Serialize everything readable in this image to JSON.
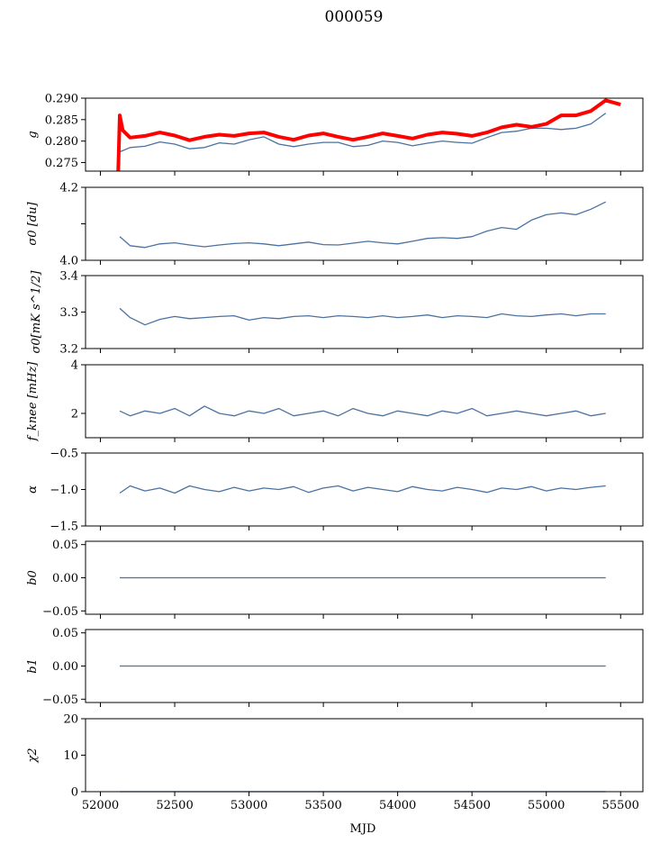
{
  "figure": {
    "title": "000059",
    "xlabel": "MJD"
  },
  "colors": {
    "series": "#4c72a0",
    "highlight": "#ff0000",
    "axes": "#000000"
  },
  "chart_data": [
    {
      "type": "line",
      "ylabel": "g",
      "ylim": [
        0.273,
        0.29
      ],
      "yticks": [
        "0.275",
        "0.280",
        "0.285",
        "0.290"
      ],
      "ytick_values": [
        0.275,
        0.28,
        0.285,
        0.29
      ],
      "xlim": [
        51900,
        55650
      ],
      "series": [
        {
          "color": "#4c72a0",
          "x": [
            52130,
            52200,
            52300,
            52400,
            52500,
            52600,
            52700,
            52800,
            52900,
            53000,
            53100,
            53200,
            53300,
            53400,
            53500,
            53600,
            53700,
            53800,
            53900,
            54000,
            54100,
            54200,
            54300,
            54400,
            54500,
            54600,
            54700,
            54800,
            54900,
            55000,
            55100,
            55200,
            55300,
            55400
          ],
          "y": [
            0.2775,
            0.2785,
            0.2788,
            0.2798,
            0.2793,
            0.2782,
            0.2785,
            0.2796,
            0.2793,
            0.2803,
            0.281,
            0.2793,
            0.2787,
            0.2793,
            0.2797,
            0.2797,
            0.2787,
            0.279,
            0.28,
            0.2797,
            0.2789,
            0.2795,
            0.28,
            0.2797,
            0.2795,
            0.2808,
            0.282,
            0.2823,
            0.283,
            0.283,
            0.2827,
            0.283,
            0.284,
            0.2865
          ]
        },
        {
          "color": "#ff0000",
          "x": [
            52120,
            52130,
            52150,
            52200,
            52300,
            52400,
            52500,
            52600,
            52700,
            52800,
            52900,
            53000,
            53100,
            53200,
            53300,
            53400,
            53500,
            53600,
            53700,
            53800,
            53900,
            54000,
            54100,
            54200,
            54300,
            54400,
            54500,
            54600,
            54700,
            54800,
            54900,
            55000,
            55100,
            55200,
            55300,
            55400,
            55500
          ],
          "y": [
            0.273,
            0.286,
            0.2825,
            0.2808,
            0.2812,
            0.282,
            0.2813,
            0.2802,
            0.281,
            0.2815,
            0.2812,
            0.2818,
            0.282,
            0.281,
            0.2803,
            0.2813,
            0.2818,
            0.281,
            0.2803,
            0.281,
            0.2818,
            0.2812,
            0.2806,
            0.2815,
            0.282,
            0.2817,
            0.2812,
            0.282,
            0.2832,
            0.2838,
            0.2833,
            0.284,
            0.286,
            0.286,
            0.287,
            0.2895,
            0.2885
          ]
        }
      ]
    },
    {
      "type": "line",
      "ylabel": "σ0 [du]",
      "ylim": [
        4.0,
        4.2
      ],
      "yticks": [
        "4.0",
        "",
        "4.2"
      ],
      "ytick_values": [
        4.0,
        4.1,
        4.2
      ],
      "xlim": [
        51900,
        55650
      ],
      "series": [
        {
          "color": "#4c72a0",
          "x": [
            52130,
            52200,
            52300,
            52400,
            52500,
            52600,
            52700,
            52800,
            52900,
            53000,
            53100,
            53200,
            53300,
            53400,
            53500,
            53600,
            53700,
            53800,
            53900,
            54000,
            54100,
            54200,
            54300,
            54400,
            54500,
            54600,
            54700,
            54800,
            54900,
            55000,
            55100,
            55200,
            55300,
            55400
          ],
          "y": [
            4.065,
            4.04,
            4.035,
            4.045,
            4.048,
            4.042,
            4.037,
            4.042,
            4.046,
            4.048,
            4.045,
            4.04,
            4.045,
            4.05,
            4.043,
            4.042,
            4.047,
            4.052,
            4.048,
            4.045,
            4.052,
            4.06,
            4.062,
            4.06,
            4.065,
            4.08,
            4.09,
            4.085,
            4.11,
            4.125,
            4.13,
            4.125,
            4.14,
            4.16
          ]
        }
      ]
    },
    {
      "type": "line",
      "ylabel": "σ0[mK s^1/2]",
      "ylim": [
        3.2,
        3.4
      ],
      "yticks": [
        "3.2",
        "3.3",
        "3.4"
      ],
      "ytick_values": [
        3.2,
        3.3,
        3.4
      ],
      "xlim": [
        51900,
        55650
      ],
      "series": [
        {
          "color": "#4c72a0",
          "x": [
            52130,
            52200,
            52300,
            52400,
            52500,
            52600,
            52700,
            52800,
            52900,
            53000,
            53100,
            53200,
            53300,
            53400,
            53500,
            53600,
            53700,
            53800,
            53900,
            54000,
            54100,
            54200,
            54300,
            54400,
            54500,
            54600,
            54700,
            54800,
            54900,
            55000,
            55100,
            55200,
            55300,
            55400
          ],
          "y": [
            3.31,
            3.285,
            3.265,
            3.28,
            3.288,
            3.282,
            3.285,
            3.288,
            3.29,
            3.278,
            3.285,
            3.282,
            3.288,
            3.29,
            3.285,
            3.29,
            3.288,
            3.285,
            3.29,
            3.285,
            3.288,
            3.292,
            3.285,
            3.29,
            3.288,
            3.285,
            3.295,
            3.29,
            3.288,
            3.292,
            3.295,
            3.29,
            3.295,
            3.295
          ]
        }
      ]
    },
    {
      "type": "line",
      "ylabel": "f_knee [mHz]",
      "ylim": [
        1,
        4
      ],
      "yticks": [
        "2",
        "4"
      ],
      "ytick_values": [
        2,
        4
      ],
      "xlim": [
        51900,
        55650
      ],
      "series": [
        {
          "color": "#4c72a0",
          "x": [
            52130,
            52200,
            52300,
            52400,
            52500,
            52600,
            52700,
            52800,
            52900,
            53000,
            53100,
            53200,
            53300,
            53400,
            53500,
            53600,
            53700,
            53800,
            53900,
            54000,
            54100,
            54200,
            54300,
            54400,
            54500,
            54600,
            54700,
            54800,
            54900,
            55000,
            55100,
            55200,
            55300,
            55400
          ],
          "y": [
            2.1,
            1.9,
            2.1,
            2.0,
            2.2,
            1.9,
            2.3,
            2.0,
            1.9,
            2.1,
            2.0,
            2.2,
            1.9,
            2.0,
            2.1,
            1.9,
            2.2,
            2.0,
            1.9,
            2.1,
            2.0,
            1.9,
            2.1,
            2.0,
            2.2,
            1.9,
            2.0,
            2.1,
            2.0,
            1.9,
            2.0,
            2.1,
            1.9,
            2.0
          ]
        }
      ]
    },
    {
      "type": "line",
      "ylabel": "α",
      "ylim": [
        -1.5,
        -0.5
      ],
      "yticks": [
        "−1.5",
        "−1.0",
        "−0.5"
      ],
      "ytick_values": [
        -1.5,
        -1.0,
        -0.5
      ],
      "xlim": [
        51900,
        55650
      ],
      "series": [
        {
          "color": "#4c72a0",
          "x": [
            52130,
            52200,
            52300,
            52400,
            52500,
            52600,
            52700,
            52800,
            52900,
            53000,
            53100,
            53200,
            53300,
            53400,
            53500,
            53600,
            53700,
            53800,
            53900,
            54000,
            54100,
            54200,
            54300,
            54400,
            54500,
            54600,
            54700,
            54800,
            54900,
            55000,
            55100,
            55200,
            55300,
            55400
          ],
          "y": [
            -1.05,
            -0.95,
            -1.02,
            -0.98,
            -1.05,
            -0.95,
            -1.0,
            -1.03,
            -0.97,
            -1.02,
            -0.98,
            -1.0,
            -0.96,
            -1.04,
            -0.98,
            -0.95,
            -1.02,
            -0.97,
            -1.0,
            -1.03,
            -0.96,
            -1.0,
            -1.02,
            -0.97,
            -1.0,
            -1.04,
            -0.98,
            -1.0,
            -0.96,
            -1.02,
            -0.98,
            -1.0,
            -0.97,
            -0.95
          ]
        }
      ]
    },
    {
      "type": "line",
      "ylabel": "b0",
      "ylim": [
        -0.055,
        0.055
      ],
      "yticks": [
        "−0.05",
        "0.00",
        "0.05"
      ],
      "ytick_values": [
        -0.05,
        0.0,
        0.05
      ],
      "xlim": [
        51900,
        55650
      ],
      "series": [
        {
          "color": "#4c72a0",
          "x": [
            52130,
            55400
          ],
          "y": [
            0,
            0
          ]
        }
      ]
    },
    {
      "type": "line",
      "ylabel": "b1",
      "ylim": [
        -0.055,
        0.055
      ],
      "yticks": [
        "−0.05",
        "0.00",
        "0.05"
      ],
      "ytick_values": [
        -0.05,
        0.0,
        0.05
      ],
      "xlim": [
        51900,
        55650
      ],
      "series": [
        {
          "color": "#4c72a0",
          "x": [
            52130,
            55400
          ],
          "y": [
            0,
            0
          ]
        }
      ]
    },
    {
      "type": "line",
      "ylabel": "χ2",
      "ylim": [
        0,
        20
      ],
      "yticks": [
        "0",
        "10",
        "20"
      ],
      "ytick_values": [
        0,
        10,
        20
      ],
      "xlim": [
        51900,
        55650
      ],
      "xticks": [
        "52000",
        "52500",
        "53000",
        "53500",
        "54000",
        "54500",
        "55000",
        "55500"
      ],
      "xtick_values": [
        52000,
        52500,
        53000,
        53500,
        54000,
        54500,
        55000,
        55500
      ],
      "series": [
        {
          "color": "#4c72a0",
          "x": [
            52130,
            55400
          ],
          "y": [
            0,
            0
          ]
        }
      ]
    }
  ]
}
